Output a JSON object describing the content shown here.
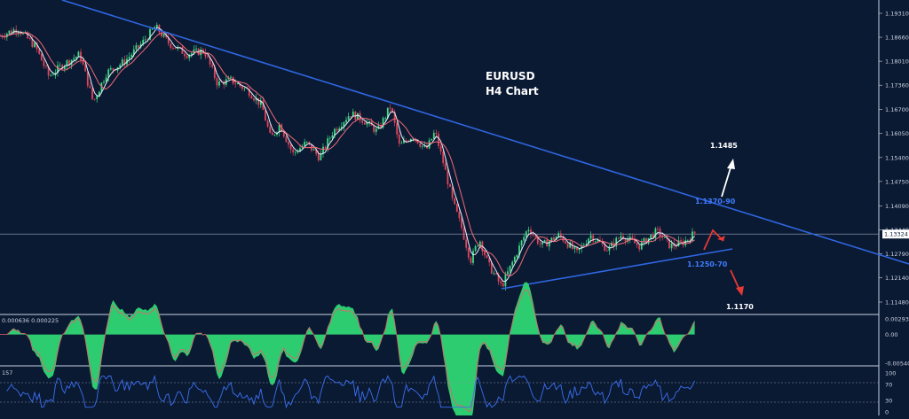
{
  "chart_data": [
    {
      "type": "candlestick",
      "title": "EURUSD",
      "subtitle": "H4 Chart",
      "ylim": [
        1.112,
        1.1955
      ],
      "yticks": [
        "1.19310",
        "1.18660",
        "1.18010",
        "1.17360",
        "1.16700",
        "1.16050",
        "1.15400",
        "1.14750",
        "1.14090",
        "1.13440",
        "1.12790",
        "1.12140",
        "1.11480"
      ],
      "current_price": "1.13324",
      "price_path": [
        [
          0,
          1.187
        ],
        [
          20,
          1.189
        ],
        [
          40,
          1.184
        ],
        [
          55,
          1.176
        ],
        [
          70,
          1.179
        ],
        [
          90,
          1.182
        ],
        [
          105,
          1.169
        ],
        [
          120,
          1.177
        ],
        [
          140,
          1.18
        ],
        [
          160,
          1.185
        ],
        [
          175,
          1.1895
        ],
        [
          190,
          1.185
        ],
        [
          210,
          1.182
        ],
        [
          230,
          1.183
        ],
        [
          245,
          1.174
        ],
        [
          260,
          1.175
        ],
        [
          280,
          1.172
        ],
        [
          295,
          1.168
        ],
        [
          305,
          1.159
        ],
        [
          315,
          1.163
        ],
        [
          330,
          1.155
        ],
        [
          345,
          1.158
        ],
        [
          360,
          1.154
        ],
        [
          375,
          1.161
        ],
        [
          395,
          1.166
        ],
        [
          410,
          1.164
        ],
        [
          425,
          1.161
        ],
        [
          440,
          1.168
        ],
        [
          450,
          1.157
        ],
        [
          465,
          1.16
        ],
        [
          480,
          1.156
        ],
        [
          490,
          1.161
        ],
        [
          500,
          1.152
        ],
        [
          510,
          1.142
        ],
        [
          520,
          1.135
        ],
        [
          530,
          1.126
        ],
        [
          540,
          1.132
        ],
        [
          550,
          1.125
        ],
        [
          565,
          1.119
        ],
        [
          580,
          1.127
        ],
        [
          595,
          1.135
        ],
        [
          610,
          1.13
        ],
        [
          630,
          1.133
        ],
        [
          650,
          1.128
        ],
        [
          665,
          1.133
        ],
        [
          685,
          1.129
        ],
        [
          700,
          1.133
        ],
        [
          720,
          1.13
        ],
        [
          740,
          1.134
        ],
        [
          755,
          1.13
        ],
        [
          770,
          1.131
        ],
        [
          785,
          1.134
        ]
      ],
      "annotations": {
        "resistance_label": "1.1370-90",
        "support_label": "1.1250-70",
        "upside_target": "1.1485",
        "downside_target": "1.1170"
      }
    },
    {
      "type": "histogram",
      "header": "0.000636 0.000225",
      "yticks": [
        "0.002934",
        "0.00",
        "-0.00540"
      ]
    },
    {
      "type": "line",
      "header": "157",
      "yticks": [
        "100",
        "70",
        "30",
        "0"
      ]
    }
  ]
}
